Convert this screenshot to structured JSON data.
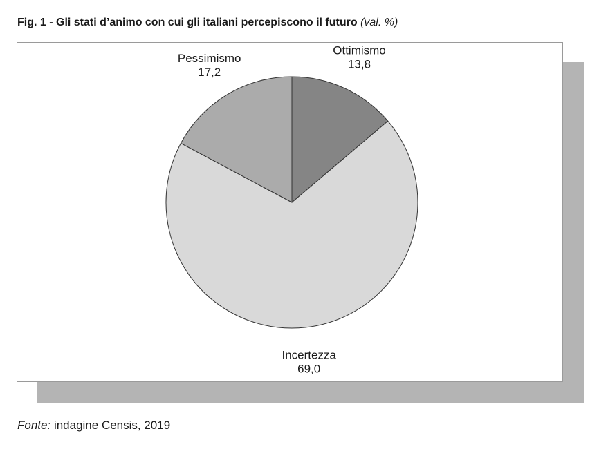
{
  "figure": {
    "title": "Fig. 1 - Gli stati d’animo con cui gli italiani percepiscono il futuro",
    "unit": "(val. %)"
  },
  "chart_data": {
    "type": "pie",
    "title": "Fig. 1 - Gli stati d’animo con cui gli italiani percepiscono il futuro",
    "unit": "(val. %)",
    "slices": [
      {
        "label": "Ottimismo",
        "value": 13.8,
        "value_label": "13,8",
        "color": "#858585"
      },
      {
        "label": "Incertezza",
        "value": 69.0,
        "value_label": "69,0",
        "color": "#d9d9d9"
      },
      {
        "label": "Pessimismo",
        "value": 17.2,
        "value_label": "17,2",
        "color": "#ababab"
      }
    ],
    "start": "12 o'clock",
    "direction": "clockwise",
    "edge_color": "#333333",
    "legend": "none"
  },
  "source": {
    "label": "Fonte:",
    "text": "indagine Censis, 2019"
  }
}
